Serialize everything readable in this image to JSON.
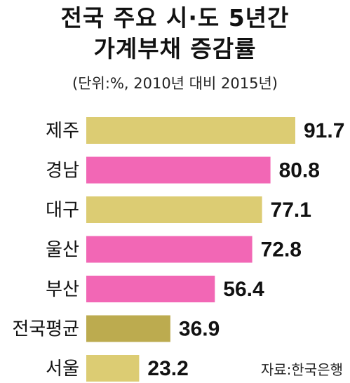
{
  "title": {
    "line1": "전국 주요 시·도 5년간",
    "line2": "가계부채 증감률"
  },
  "subtitle": "(단위:%, 2010년 대비 2015년)",
  "source": "자료:한국은행",
  "colors": {
    "yellow": "#dccc73",
    "pink": "#f267b5",
    "olive": "#bcab4f",
    "text": "#111111"
  },
  "chart_data": {
    "type": "bar",
    "orientation": "horizontal",
    "title": "전국 주요 시·도 5년간 가계부채 증감률",
    "subtitle": "(단위:%, 2010년 대비 2015년)",
    "categories": [
      "제주",
      "경남",
      "대구",
      "울산",
      "부산",
      "전국평균",
      "서울"
    ],
    "values": [
      91.7,
      80.8,
      77.1,
      72.8,
      56.4,
      36.9,
      23.2
    ],
    "value_labels": [
      "91.7",
      "80.8",
      "77.1",
      "72.8",
      "56.4",
      "36.9",
      "23.2"
    ],
    "bar_colors": [
      "yellow",
      "pink",
      "yellow",
      "pink",
      "pink",
      "olive",
      "yellow"
    ],
    "xlim": [
      0,
      91.7
    ],
    "grid": false,
    "legend": "none"
  }
}
